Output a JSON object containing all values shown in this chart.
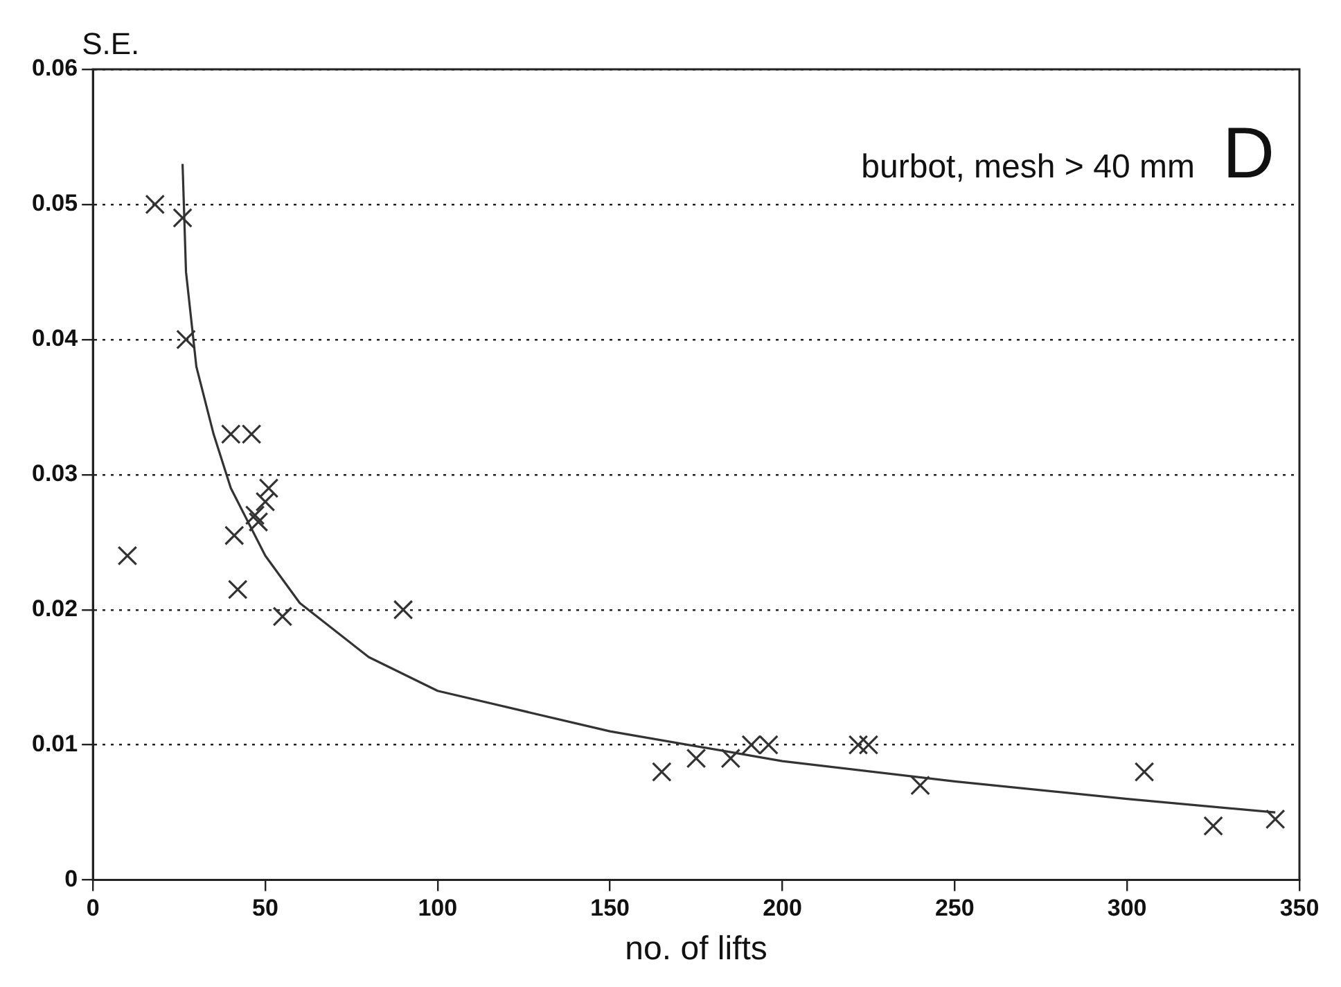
{
  "chart_data": {
    "type": "scatter",
    "xlabel": "no. of lifts",
    "ylabel": "S.E.",
    "annotations": [
      "burbot, mesh > 40 mm",
      "D"
    ],
    "xlim": [
      0,
      350
    ],
    "xticks": [
      0,
      50,
      100,
      150,
      200,
      250,
      300,
      350
    ],
    "ylim": [
      0,
      0.06
    ],
    "yticks": [
      0,
      0.01,
      0.02,
      0.03,
      0.04,
      0.05,
      0.06
    ],
    "grid": "y",
    "legend": false,
    "series": [
      {
        "type": "scatter",
        "marker": "cross",
        "color": "#333333",
        "x": [
          10,
          18,
          26,
          27,
          40,
          46,
          41,
          42,
          47,
          48,
          50,
          51,
          55,
          90,
          165,
          175,
          185,
          191,
          196,
          222,
          225,
          240,
          305,
          325,
          343
        ],
        "values": [
          0.024,
          0.05,
          0.049,
          0.04,
          0.033,
          0.033,
          0.0255,
          0.0215,
          0.027,
          0.0265,
          0.028,
          0.029,
          0.0195,
          0.02,
          0.008,
          0.009,
          0.009,
          0.01,
          0.01,
          0.01,
          0.01,
          0.007,
          0.008,
          0.004,
          0.0045
        ]
      },
      {
        "type": "line",
        "marker": "none",
        "color": "#333333",
        "line_style": "solid",
        "x": [
          26,
          27,
          30,
          35,
          40,
          50,
          60,
          80,
          100,
          150,
          200,
          250,
          300,
          343
        ],
        "values": [
          0.053,
          0.045,
          0.038,
          0.033,
          0.029,
          0.024,
          0.0205,
          0.0165,
          0.014,
          0.011,
          0.0088,
          0.0073,
          0.006,
          0.005
        ]
      }
    ]
  }
}
